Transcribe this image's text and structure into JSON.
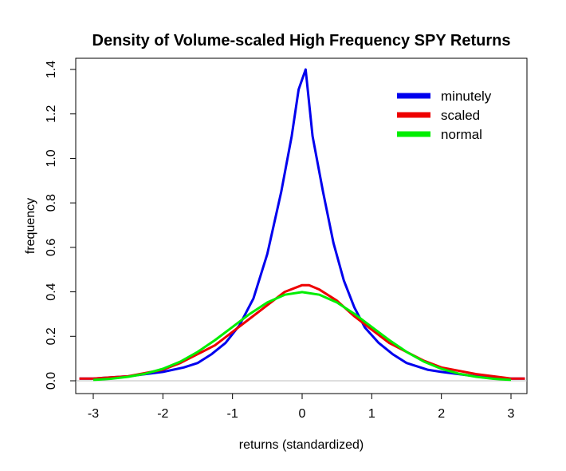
{
  "chart_data": {
    "type": "line",
    "title": "Density of Volume-scaled High Frequency SPY Returns",
    "xlabel": "returns (standardized)",
    "ylabel": "frequency",
    "xlim": [
      -3.0,
      3.0
    ],
    "ylim": [
      0.0,
      1.4
    ],
    "x_ticks": [
      "-3",
      "-2",
      "-1",
      "0",
      "1",
      "2",
      "3"
    ],
    "y_ticks": [
      "0.0",
      "0.2",
      "0.4",
      "0.6",
      "0.8",
      "1.0",
      "1.2",
      "1.4"
    ],
    "zero_baseline": true,
    "legend_position": "top-right",
    "series": [
      {
        "name": "minutely",
        "color": "#0000EE",
        "points": [
          [
            -3.2,
            0.01
          ],
          [
            -3.0,
            0.01
          ],
          [
            -2.5,
            0.02
          ],
          [
            -2.0,
            0.04
          ],
          [
            -1.7,
            0.06
          ],
          [
            -1.5,
            0.08
          ],
          [
            -1.3,
            0.12
          ],
          [
            -1.1,
            0.17
          ],
          [
            -0.9,
            0.25
          ],
          [
            -0.7,
            0.37
          ],
          [
            -0.5,
            0.57
          ],
          [
            -0.3,
            0.85
          ],
          [
            -0.15,
            1.1
          ],
          [
            -0.05,
            1.31
          ],
          [
            0.05,
            1.4
          ],
          [
            0.15,
            1.1
          ],
          [
            0.3,
            0.85
          ],
          [
            0.45,
            0.62
          ],
          [
            0.6,
            0.45
          ],
          [
            0.75,
            0.33
          ],
          [
            0.9,
            0.24
          ],
          [
            1.1,
            0.17
          ],
          [
            1.3,
            0.12
          ],
          [
            1.5,
            0.08
          ],
          [
            1.8,
            0.05
          ],
          [
            2.0,
            0.04
          ],
          [
            2.5,
            0.02
          ],
          [
            3.0,
            0.01
          ],
          [
            3.2,
            0.01
          ]
        ]
      },
      {
        "name": "scaled",
        "color": "#EE0000",
        "points": [
          [
            -3.2,
            0.01
          ],
          [
            -3.0,
            0.01
          ],
          [
            -2.5,
            0.02
          ],
          [
            -2.0,
            0.05
          ],
          [
            -1.75,
            0.08
          ],
          [
            -1.5,
            0.12
          ],
          [
            -1.25,
            0.16
          ],
          [
            -1.0,
            0.22
          ],
          [
            -0.75,
            0.28
          ],
          [
            -0.5,
            0.34
          ],
          [
            -0.25,
            0.4
          ],
          [
            0.0,
            0.43
          ],
          [
            0.1,
            0.43
          ],
          [
            0.25,
            0.41
          ],
          [
            0.5,
            0.36
          ],
          [
            0.75,
            0.29
          ],
          [
            1.0,
            0.23
          ],
          [
            1.25,
            0.17
          ],
          [
            1.5,
            0.13
          ],
          [
            1.75,
            0.09
          ],
          [
            2.0,
            0.06
          ],
          [
            2.5,
            0.03
          ],
          [
            3.0,
            0.01
          ],
          [
            3.2,
            0.01
          ]
        ]
      },
      {
        "name": "normal",
        "color": "#00EE00",
        "points": [
          [
            -3.0,
            0.004
          ],
          [
            -2.75,
            0.009
          ],
          [
            -2.5,
            0.018
          ],
          [
            -2.25,
            0.032
          ],
          [
            -2.0,
            0.054
          ],
          [
            -1.75,
            0.086
          ],
          [
            -1.5,
            0.13
          ],
          [
            -1.25,
            0.183
          ],
          [
            -1.0,
            0.242
          ],
          [
            -0.75,
            0.301
          ],
          [
            -0.5,
            0.352
          ],
          [
            -0.25,
            0.387
          ],
          [
            0.0,
            0.399
          ],
          [
            0.25,
            0.387
          ],
          [
            0.5,
            0.352
          ],
          [
            0.75,
            0.301
          ],
          [
            1.0,
            0.242
          ],
          [
            1.25,
            0.183
          ],
          [
            1.5,
            0.13
          ],
          [
            1.75,
            0.086
          ],
          [
            2.0,
            0.054
          ],
          [
            2.25,
            0.032
          ],
          [
            2.5,
            0.018
          ],
          [
            2.75,
            0.009
          ],
          [
            3.0,
            0.004
          ]
        ]
      }
    ]
  }
}
